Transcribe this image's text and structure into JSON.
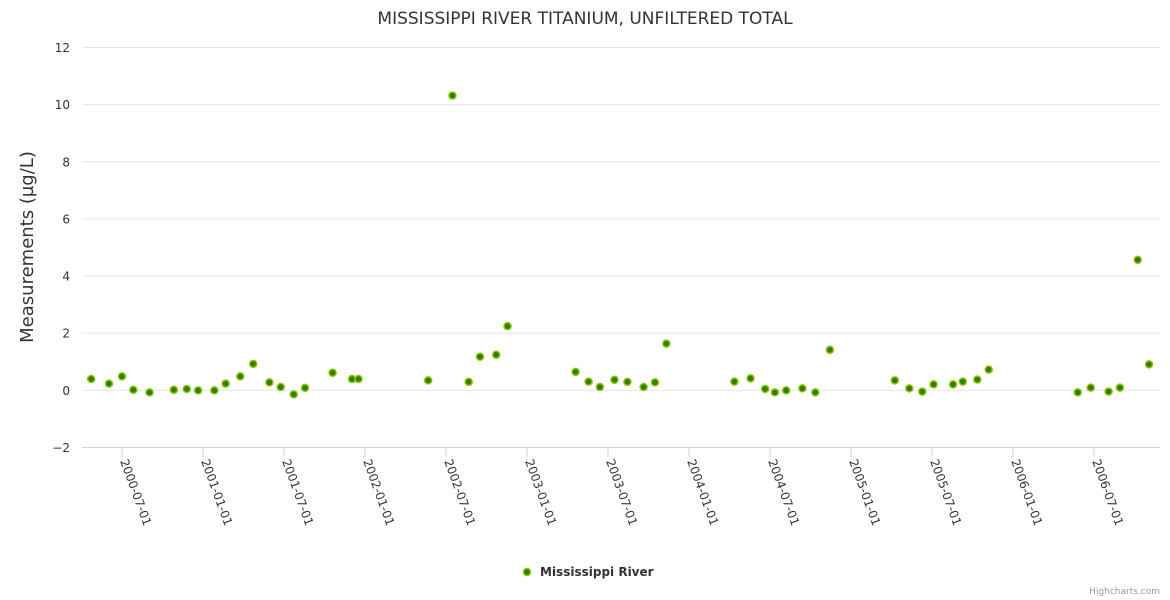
{
  "chart_data": {
    "type": "scatter",
    "title": "MISSISSIPPI RIVER TITANIUM, UNFILTERED TOTAL",
    "xlabel": "",
    "ylabel": "Measurements (µg/L)",
    "ylim": [
      -2,
      12
    ],
    "yticks": [
      -2,
      0,
      2,
      4,
      6,
      8,
      10,
      12
    ],
    "xlim": [
      2000.25,
      2006.98
    ],
    "xticks": [
      {
        "value": 2000.5,
        "label": "2000-07-01"
      },
      {
        "value": 2001.0,
        "label": "2001-01-01"
      },
      {
        "value": 2001.5,
        "label": "2001-07-01"
      },
      {
        "value": 2002.0,
        "label": "2002-01-01"
      },
      {
        "value": 2002.5,
        "label": "2002-07-01"
      },
      {
        "value": 2003.0,
        "label": "2003-01-01"
      },
      {
        "value": 2003.5,
        "label": "2003-07-01"
      },
      {
        "value": 2004.0,
        "label": "2004-01-01"
      },
      {
        "value": 2004.5,
        "label": "2004-07-01"
      },
      {
        "value": 2005.0,
        "label": "2005-01-01"
      },
      {
        "value": 2005.5,
        "label": "2005-07-01"
      },
      {
        "value": 2006.0,
        "label": "2006-01-01"
      },
      {
        "value": 2006.5,
        "label": "2006-07-01"
      }
    ],
    "grid": true,
    "legend_position": "bottom-center",
    "series": [
      {
        "name": "Mississippi River",
        "color": "#7cb5ec",
        "marker_fill": "#2f7d00",
        "marker_stroke": "#8cc400",
        "x": [
          2000.31,
          2000.42,
          2000.5,
          2000.57,
          2000.67,
          2000.82,
          2000.9,
          2000.97,
          2001.07,
          2001.14,
          2001.23,
          2001.31,
          2001.41,
          2001.48,
          2001.56,
          2001.63,
          2001.8,
          2001.92,
          2001.96,
          2002.39,
          2002.54,
          2002.64,
          2002.71,
          2002.81,
          2002.88,
          2003.3,
          2003.38,
          2003.45,
          2003.54,
          2003.62,
          2003.72,
          2003.79,
          2003.86,
          2004.28,
          2004.38,
          2004.47,
          2004.53,
          2004.6,
          2004.7,
          2004.78,
          2004.87,
          2005.27,
          2005.36,
          2005.44,
          2005.51,
          2005.63,
          2005.69,
          2005.78,
          2005.85,
          2006.4,
          2006.48,
          2006.59,
          2006.66,
          2006.77,
          2006.84
        ],
        "y": [
          0.38,
          0.22,
          0.47,
          0.0,
          -0.09,
          0.0,
          0.03,
          -0.02,
          -0.02,
          0.22,
          0.47,
          0.91,
          0.26,
          0.1,
          -0.16,
          0.07,
          0.6,
          0.38,
          0.38,
          0.33,
          10.3,
          0.28,
          1.16,
          1.23,
          2.23,
          0.63,
          0.29,
          0.1,
          0.35,
          0.28,
          0.1,
          0.26,
          1.62,
          0.29,
          0.4,
          0.03,
          -0.09,
          -0.02,
          0.05,
          -0.09,
          1.4,
          0.33,
          0.05,
          -0.06,
          0.19,
          0.19,
          0.29,
          0.36,
          0.71,
          -0.09,
          0.08,
          -0.06,
          0.08,
          4.55,
          0.89
        ]
      }
    ]
  },
  "credit": "Highcharts.com"
}
